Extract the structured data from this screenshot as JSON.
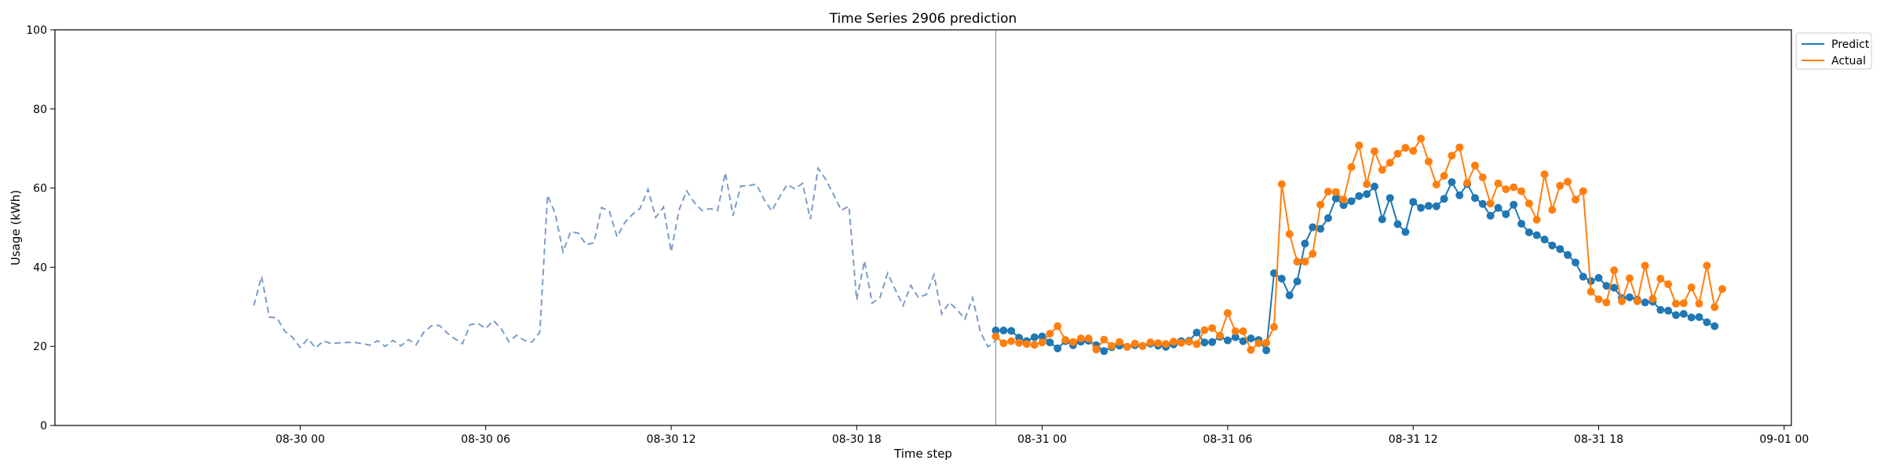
{
  "chart_data": {
    "type": "line",
    "title": "Time Series 2906 prediction",
    "xlabel": "Time step",
    "ylabel": "Usage (kWh)",
    "ylim": [
      0,
      100
    ],
    "xlim": [
      "2024-08-29 16:04",
      "2024-09-01 00:14"
    ],
    "yticks": [
      0,
      20,
      40,
      60,
      80,
      100
    ],
    "xticks": [
      {
        "t": "2024-08-30 00:00",
        "label": "08-30 00"
      },
      {
        "t": "2024-08-30 06:00",
        "label": "08-30 06"
      },
      {
        "t": "2024-08-30 12:00",
        "label": "08-30 12"
      },
      {
        "t": "2024-08-30 18:00",
        "label": "08-30 18"
      },
      {
        "t": "2024-08-31 00:00",
        "label": "08-31 00"
      },
      {
        "t": "2024-08-31 06:00",
        "label": "08-31 06"
      },
      {
        "t": "2024-08-31 12:00",
        "label": "08-31 12"
      },
      {
        "t": "2024-08-31 18:00",
        "label": "08-31 18"
      },
      {
        "t": "2024-09-01 00:00",
        "label": "09-01 00"
      }
    ],
    "grid": false,
    "legend_position": "upper-right-outside",
    "forecast_start": "2024-08-30 22:30",
    "history": {
      "start": "2024-08-29 22:30",
      "step_minutes": 15,
      "style": "dashed",
      "color": "#7b9cc9",
      "values": [
        30.3,
        37.7,
        27.4,
        27.2,
        23.8,
        22.3,
        19.7,
        21.9,
        19.6,
        21.4,
        20.7,
        20.9,
        21,
        21,
        20.7,
        20.3,
        21.4,
        20,
        21.5,
        20.1,
        21.7,
        20.4,
        23.6,
        25.2,
        25.3,
        23.4,
        21.9,
        20.7,
        25.5,
        25.8,
        24.5,
        26.5,
        24.5,
        21.2,
        22.8,
        21.5,
        21.1,
        23.6,
        58.2,
        53.6,
        43.9,
        49,
        48.6,
        45.7,
        46.2,
        55.1,
        54.1,
        47.7,
        51.3,
        53.4,
        54.9,
        59.7,
        52.6,
        55.2,
        43.9,
        54.4,
        59.3,
        56.3,
        54.3,
        54.8,
        54.3,
        63.9,
        53,
        60.5,
        60.6,
        61,
        57.2,
        54.2,
        57.7,
        60.9,
        59.8,
        61.2,
        52.1,
        65,
        62.2,
        58.4,
        54.4,
        55.4,
        31.7,
        41.6,
        30.9,
        32.3,
        38.5,
        34.3,
        30.3,
        35.4,
        32.3,
        33.1,
        38.1,
        28.2,
        31.1,
        29.2,
        26.9,
        32.3,
        23.6,
        19.9,
        21.4
      ]
    },
    "series": [
      {
        "name": "Predict",
        "color": "#1f77b4",
        "start": "2024-08-30 22:30",
        "step_minutes": 15,
        "values": [
          24,
          24,
          23.9,
          22.2,
          21.3,
          22.3,
          22.5,
          21,
          19.5,
          21.3,
          20.3,
          21.2,
          21.4,
          20.3,
          18.8,
          19.8,
          20.2,
          19.9,
          20.3,
          20.1,
          20.7,
          20.2,
          19.9,
          20.5,
          21.3,
          21.4,
          23.5,
          21,
          21.1,
          22.4,
          21.5,
          22.3,
          21.3,
          22,
          21.6,
          19,
          38.5,
          37.1,
          32.9,
          36.4,
          46,
          50.1,
          49.7,
          52.4,
          57.4,
          55.7,
          56.7,
          58,
          58.5,
          60.4,
          52.1,
          57.5,
          50.9,
          48.9,
          56.5,
          55,
          55.5,
          55.4,
          57.3,
          61.5,
          58.2,
          61,
          57.5,
          56,
          53,
          55,
          53.4,
          55.8,
          51,
          48.8,
          48.1,
          47,
          45.5,
          44.6,
          43.1,
          41.2,
          37.6,
          36.5,
          37.3,
          35.3,
          34.8,
          32.2,
          32.4,
          31.8,
          31.1,
          31.3,
          29.2,
          29,
          27.9,
          28.2,
          27.3,
          27.4,
          26.1,
          25.1
        ]
      },
      {
        "name": "Actual",
        "color": "#ff7f0e",
        "start": "2024-08-30 22:30",
        "step_minutes": 15,
        "values": [
          22.5,
          20.8,
          21.3,
          20.9,
          20.6,
          20.4,
          21,
          23.2,
          25.1,
          21.6,
          21.1,
          22,
          22,
          19.2,
          21.7,
          20.1,
          21.1,
          19.9,
          20.7,
          20.1,
          21,
          20.8,
          20.6,
          21.2,
          20.9,
          21.2,
          20.6,
          24.1,
          24.6,
          22.7,
          28.4,
          23.8,
          23.8,
          19.1,
          20.8,
          20.9,
          24.9,
          61,
          48.4,
          41.4,
          41.4,
          43.4,
          55.8,
          59.1,
          59,
          57.1,
          65.3,
          70.8,
          61,
          69.3,
          64.6,
          66.4,
          68.7,
          70.2,
          69.4,
          72.5,
          66.7,
          60.9,
          63.1,
          68.2,
          70.3,
          61.3,
          65.7,
          62.7,
          56.1,
          61.2,
          59.7,
          60.2,
          59.2,
          56.1,
          52,
          63.5,
          54.5,
          60.6,
          61.6,
          57.1,
          59.2,
          33.8,
          31.9,
          31.1,
          39.2,
          31.4,
          37.2,
          31.4,
          40.4,
          32,
          37.1,
          35.7,
          30.8,
          30.9,
          34.9,
          30.8,
          40.4,
          29.9,
          34.5
        ]
      }
    ]
  }
}
